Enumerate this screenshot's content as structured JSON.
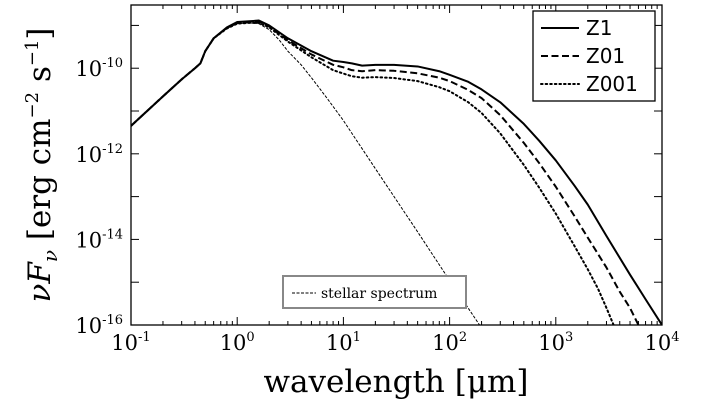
{
  "chart_data": {
    "type": "line",
    "xlabel": "wavelength [μm]",
    "ylabel": {
      "symbol": "νF",
      "subscript": "ν",
      "units_open": " [erg cm",
      "units_exp1": "−2",
      "units_mid": " s",
      "units_exp2": "−1",
      "units_close": "]"
    },
    "x_scale": "log",
    "y_scale": "log",
    "xlim": [
      0.1,
      10000
    ],
    "ylim": [
      1e-16,
      3e-09
    ],
    "x_ticks": [
      {
        "value": 0.1,
        "base": "10",
        "exp": "-1"
      },
      {
        "value": 1,
        "base": "10",
        "exp": "0"
      },
      {
        "value": 10,
        "base": "10",
        "exp": "1"
      },
      {
        "value": 100,
        "base": "10",
        "exp": "2"
      },
      {
        "value": 1000,
        "base": "10",
        "exp": "3"
      },
      {
        "value": 10000,
        "base": "10",
        "exp": "4"
      }
    ],
    "y_ticks": [
      {
        "value": 1e-16,
        "base": "10",
        "exp": "-16"
      },
      {
        "value": 1e-14,
        "base": "10",
        "exp": "-14"
      },
      {
        "value": 1e-12,
        "base": "10",
        "exp": "-12"
      },
      {
        "value": 1e-10,
        "base": "10",
        "exp": "-10"
      }
    ],
    "legend_position": "top-right",
    "grid": false,
    "series": [
      {
        "name": "Z1",
        "style": "solid",
        "x": [
          0.1,
          0.2,
          0.3,
          0.4,
          0.45,
          0.5,
          0.6,
          0.8,
          1.0,
          1.3,
          1.6,
          2.0,
          3.0,
          5.0,
          8.0,
          10,
          12,
          15,
          20,
          30,
          50,
          80,
          100,
          150,
          200,
          300,
          500,
          700,
          1000,
          1500,
          2000,
          3000,
          5000,
          7000,
          10000
        ],
        "y": [
          4.5e-12,
          2.2e-11,
          5.5e-11,
          1e-10,
          1.3e-10,
          2.5e-10,
          5e-10,
          9e-10,
          1.2e-09,
          1.25e-09,
          1.3e-09,
          1e-09,
          5e-10,
          2.5e-10,
          1.5e-10,
          1.4e-10,
          1.3e-10,
          1.15e-10,
          1.2e-10,
          1.2e-10,
          1.1e-10,
          8.5e-11,
          7e-11,
          4.8e-11,
          3.2e-11,
          1.6e-11,
          5e-12,
          2e-12,
          7e-13,
          1.8e-13,
          6.5e-14,
          1.2e-14,
          1.5e-15,
          4e-16,
          1e-16
        ]
      },
      {
        "name": "Z01",
        "style": "dashed",
        "x": [
          0.1,
          0.2,
          0.3,
          0.4,
          0.45,
          0.5,
          0.6,
          0.8,
          1.0,
          1.3,
          1.6,
          2.0,
          3.0,
          5.0,
          8.0,
          10,
          12,
          15,
          20,
          30,
          50,
          80,
          100,
          150,
          200,
          300,
          500,
          700,
          1000,
          1500,
          2000,
          3000,
          4000,
          5000,
          6000
        ],
        "y": [
          4.5e-12,
          2.2e-11,
          5.5e-11,
          1e-10,
          1.3e-10,
          2.5e-10,
          5e-10,
          8.8e-10,
          1.15e-09,
          1.2e-09,
          1.2e-09,
          9.5e-10,
          4.5e-10,
          2.1e-10,
          1.2e-10,
          1.05e-10,
          9e-11,
          8.5e-11,
          9e-11,
          8.7e-11,
          7.6e-11,
          6e-11,
          5e-11,
          3.1e-11,
          2e-11,
          8e-12,
          1.8e-12,
          6e-13,
          1.7e-13,
          3.5e-14,
          1.1e-14,
          2.2e-15,
          6e-16,
          2.5e-16,
          1e-16
        ]
      },
      {
        "name": "Z001",
        "style": "dotted",
        "x": [
          0.1,
          0.2,
          0.3,
          0.4,
          0.45,
          0.5,
          0.6,
          0.8,
          1.0,
          1.3,
          1.6,
          2.0,
          3.0,
          5.0,
          8.0,
          10,
          12,
          15,
          20,
          30,
          50,
          80,
          100,
          150,
          200,
          300,
          500,
          700,
          1000,
          1500,
          2000,
          2500,
          3000,
          3500
        ],
        "y": [
          4.5e-12,
          2.2e-11,
          5.5e-11,
          1e-10,
          1.3e-10,
          2.5e-10,
          5e-10,
          8.5e-10,
          1.1e-09,
          1.15e-09,
          1.15e-09,
          9e-10,
          4.2e-10,
          1.8e-10,
          9e-11,
          7.5e-11,
          6.5e-11,
          6e-11,
          6.2e-11,
          5.9e-11,
          5e-11,
          3.6e-11,
          2.9e-11,
          1.6e-11,
          9e-12,
          3e-12,
          5.5e-13,
          1.6e-13,
          4e-14,
          7e-15,
          2e-15,
          7e-16,
          2.5e-16,
          1e-16
        ]
      },
      {
        "name": "stellar spectrum",
        "style": "thin-dashed",
        "x": [
          0.1,
          0.2,
          0.3,
          0.4,
          0.45,
          0.5,
          0.6,
          0.8,
          1.0,
          1.3,
          1.6,
          2.0,
          2.5,
          3.0,
          4.0,
          5.0,
          7.0,
          10,
          20,
          50,
          100,
          200,
          450
        ],
        "y": [
          4.5e-12,
          2.2e-11,
          5.5e-11,
          1e-10,
          1.3e-10,
          2.5e-10,
          5e-10,
          8.5e-10,
          1.1e-09,
          1.15e-09,
          1.1e-09,
          8e-10,
          4.5e-10,
          2.5e-10,
          1.2e-10,
          6e-11,
          2e-11,
          6e-12,
          4.5e-13,
          1.5e-14,
          1.1e-15,
          8.5e-17,
          1e-17
        ]
      }
    ],
    "inset_legend": {
      "label": "stellar spectrum",
      "position": "bottom-center"
    }
  }
}
